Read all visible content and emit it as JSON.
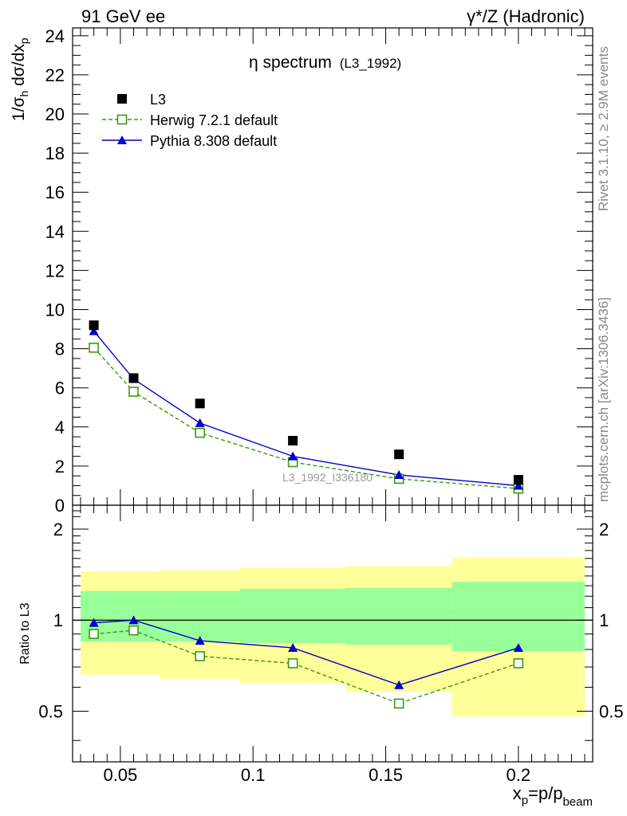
{
  "header": {
    "left": "91 GeV ee",
    "right": "γ*/Z (Hadronic)"
  },
  "side_labels": {
    "top": "Rivet 3.1.10, ≥ 2.9M events",
    "bottom": "mcplots.cern.ch [arXiv:1306.3436]"
  },
  "watermark": "L3_1992_I336180",
  "colors": {
    "data": "#000000",
    "herwig": "#3a9a0e",
    "pythia": "#0000cc",
    "band_inner": "#99ff99",
    "band_outer": "#ffff99"
  },
  "chart_data": [
    {
      "type": "scatter",
      "title": "η spectrum",
      "subtitle": "(L3_1992)",
      "ylabel": "1/σ_h dσ/dx_p",
      "xlim": [
        0.032,
        0.228
      ],
      "ylim": [
        0,
        24.4
      ],
      "yticks": [
        0,
        2,
        4,
        6,
        8,
        10,
        12,
        14,
        16,
        18,
        20,
        22,
        24
      ],
      "xticks": [
        0.05,
        0.1,
        0.15,
        0.2
      ],
      "legend_position": "top-left",
      "x": [
        0.04,
        0.055,
        0.08,
        0.115,
        0.155,
        0.2
      ],
      "series": [
        {
          "name": "L3",
          "values": [
            9.2,
            6.5,
            5.2,
            3.3,
            2.6,
            1.3
          ],
          "style": "markers"
        },
        {
          "name": "Herwig 7.2.1 default",
          "values": [
            8.05,
            5.8,
            3.7,
            2.2,
            1.35,
            0.85
          ],
          "style": "dashed-open-square"
        },
        {
          "name": "Pythia 8.308 default",
          "values": [
            8.9,
            6.45,
            4.2,
            2.5,
            1.55,
            1.0
          ],
          "style": "solid-triangle"
        }
      ]
    },
    {
      "type": "line",
      "ylabel": "Ratio to L3",
      "xlabel": "x_p=p/p_beam",
      "xlim": [
        0.032,
        0.228
      ],
      "ylim": [
        0.34,
        2.4
      ],
      "yticks": [
        0.5,
        1,
        2
      ],
      "xticks": [
        0.05,
        0.1,
        0.15,
        0.2
      ],
      "reference_line": 1,
      "bins": [
        {
          "x0": 0.035,
          "x1": 0.045,
          "inner": [
            0.85,
            1.25
          ],
          "outer": [
            0.66,
            1.45
          ]
        },
        {
          "x0": 0.045,
          "x1": 0.065,
          "inner": [
            0.85,
            1.25
          ],
          "outer": [
            0.66,
            1.45
          ]
        },
        {
          "x0": 0.065,
          "x1": 0.095,
          "inner": [
            0.85,
            1.25
          ],
          "outer": [
            0.64,
            1.46
          ]
        },
        {
          "x0": 0.095,
          "x1": 0.135,
          "inner": [
            0.84,
            1.27
          ],
          "outer": [
            0.62,
            1.49
          ]
        },
        {
          "x0": 0.135,
          "x1": 0.175,
          "inner": [
            0.83,
            1.28
          ],
          "outer": [
            0.58,
            1.51
          ]
        },
        {
          "x0": 0.175,
          "x1": 0.225,
          "inner": [
            0.79,
            1.34
          ],
          "outer": [
            0.48,
            1.61
          ]
        }
      ],
      "x": [
        0.04,
        0.055,
        0.08,
        0.115,
        0.155,
        0.2
      ],
      "series": [
        {
          "name": "Herwig 7.2.1 default",
          "values": [
            0.9,
            0.925,
            0.76,
            0.72,
            0.53,
            0.72
          ]
        },
        {
          "name": "Pythia 8.308 default",
          "values": [
            0.98,
            1.0,
            0.855,
            0.81,
            0.61,
            0.81
          ]
        }
      ]
    }
  ]
}
